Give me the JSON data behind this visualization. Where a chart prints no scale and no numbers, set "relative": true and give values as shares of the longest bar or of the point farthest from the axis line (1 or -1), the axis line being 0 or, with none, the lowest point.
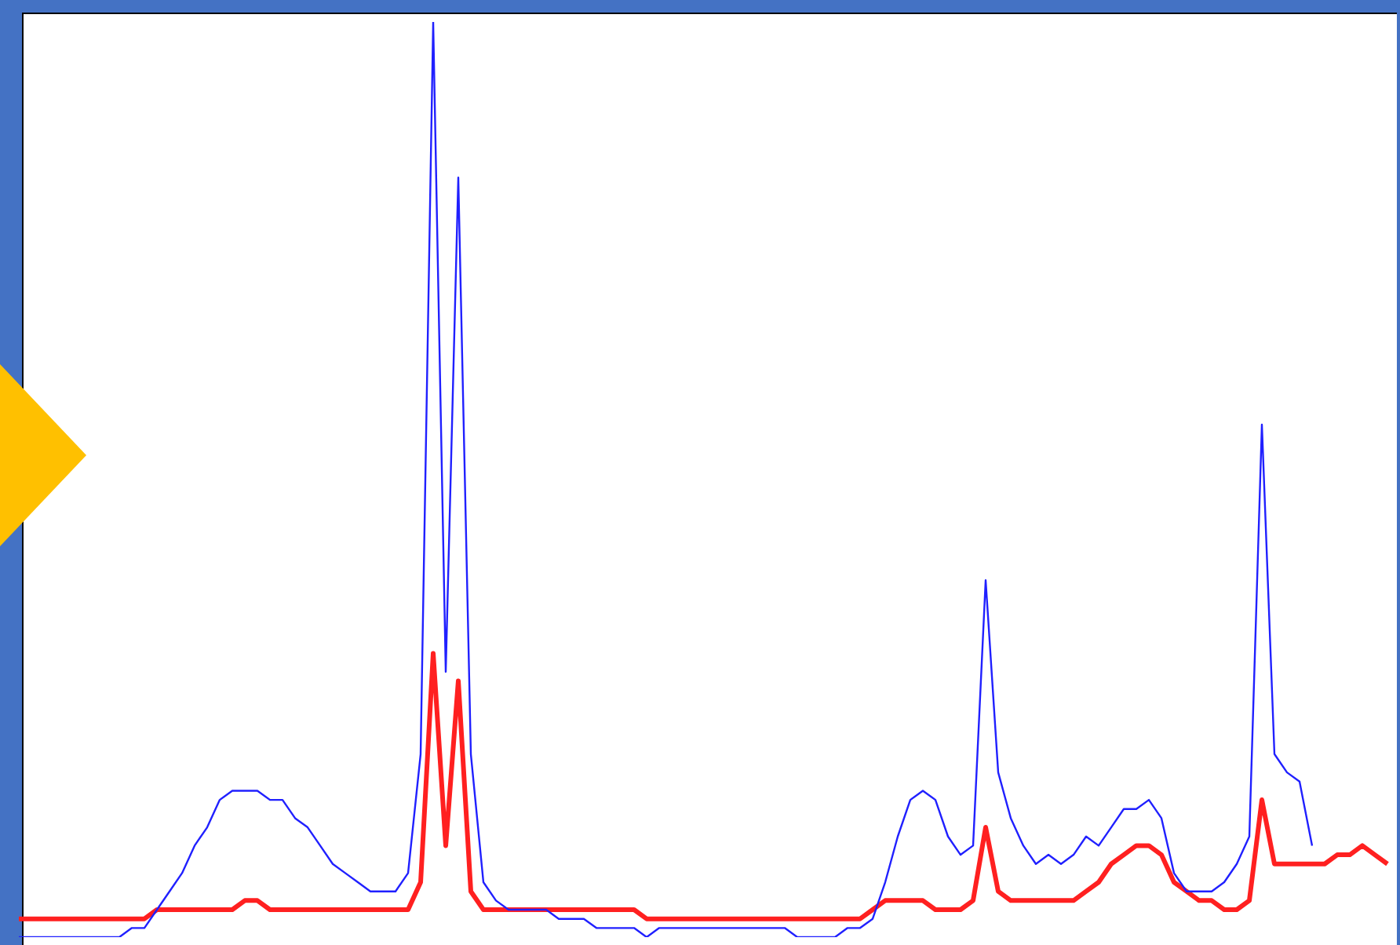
{
  "chart_data": {
    "type": "line",
    "relative": true,
    "marker": "none",
    "categories": [
      null,
      null,
      null,
      null,
      null,
      null,
      null,
      null,
      null,
      null,
      null,
      null,
      null,
      null,
      null,
      null,
      null,
      null,
      null,
      null,
      null,
      null,
      null,
      null,
      null,
      null,
      null,
      null,
      null,
      null,
      null,
      null,
      null,
      null,
      null,
      null,
      null,
      null,
      null,
      null,
      null,
      null,
      null,
      null,
      null,
      null,
      null,
      null,
      null,
      null,
      null,
      null,
      null,
      null,
      null,
      null,
      null,
      null,
      null,
      null,
      null,
      null,
      null,
      null,
      null,
      null,
      null,
      null,
      null,
      null,
      null,
      null,
      null,
      null,
      null,
      null,
      null,
      null,
      null,
      null,
      null,
      null,
      null,
      null,
      null,
      null,
      null,
      null,
      null,
      null,
      null,
      null,
      null,
      null,
      null,
      null,
      null,
      null,
      null,
      null,
      null,
      null,
      null,
      null,
      null,
      null,
      null,
      null,
      null,
      null
    ],
    "series": [
      {
        "color": "#2020ff",
        "values": [
          0,
          0,
          0,
          0,
          0,
          0,
          0,
          0,
          0,
          0.01,
          0.01,
          0.03,
          0.05,
          0.07,
          0.1,
          0.12,
          0.15,
          0.16,
          0.16,
          0.16,
          0.15,
          0.15,
          0.13,
          0.12,
          0.1,
          0.08,
          0.07,
          0.06,
          0.05,
          0.05,
          0.05,
          0.07,
          0.2,
          1,
          0.29,
          0.83,
          0.2,
          0.06,
          0.04,
          0.03,
          0.03,
          0.03,
          0.03,
          0.02,
          0.02,
          0.02,
          0.01,
          0.01,
          0.01,
          0.01,
          0,
          0.01,
          0.01,
          0.01,
          0.01,
          0.01,
          0.01,
          0.01,
          0.01,
          0.01,
          0.01,
          0.01,
          0,
          0,
          0,
          0,
          0.01,
          0.01,
          0.02,
          0.06,
          0.11,
          0.15,
          0.16,
          0.15,
          0.11,
          0.09,
          0.1,
          0.39,
          0.18,
          0.13,
          0.1,
          0.08,
          0.09,
          0.08,
          0.09,
          0.11,
          0.1,
          0.12,
          0.14,
          0.14,
          0.15,
          0.13,
          0.07,
          0.05,
          0.05,
          0.05,
          0.06,
          0.08,
          0.11,
          0.56,
          0.2,
          0.18,
          0.17,
          0.1,
          null,
          null,
          null,
          null,
          null,
          null
        ]
      },
      {
        "color": "#ff2020",
        "values": [
          0.02,
          0.02,
          0.02,
          0.02,
          0.02,
          0.02,
          0.02,
          0.02,
          0.02,
          0.02,
          0.02,
          0.03,
          0.03,
          0.03,
          0.03,
          0.03,
          0.03,
          0.03,
          0.04,
          0.04,
          0.03,
          0.03,
          0.03,
          0.03,
          0.03,
          0.03,
          0.03,
          0.03,
          0.03,
          0.03,
          0.03,
          0.03,
          0.06,
          0.31,
          0.1,
          0.28,
          0.05,
          0.03,
          0.03,
          0.03,
          0.03,
          0.03,
          0.03,
          0.03,
          0.03,
          0.03,
          0.03,
          0.03,
          0.03,
          0.03,
          0.02,
          0.02,
          0.02,
          0.02,
          0.02,
          0.02,
          0.02,
          0.02,
          0.02,
          0.02,
          0.02,
          0.02,
          0.02,
          0.02,
          0.02,
          0.02,
          0.02,
          0.02,
          0.03,
          0.04,
          0.04,
          0.04,
          0.04,
          0.03,
          0.03,
          0.03,
          0.04,
          0.12,
          0.05,
          0.04,
          0.04,
          0.04,
          0.04,
          0.04,
          0.04,
          0.05,
          0.06,
          0.08,
          0.09,
          0.1,
          0.1,
          0.09,
          0.06,
          0.05,
          0.04,
          0.04,
          0.03,
          0.03,
          0.04,
          0.15,
          0.08,
          0.08,
          0.08,
          0.08,
          0.08,
          0.09,
          0.09,
          0.1,
          0.09,
          0.08
        ]
      }
    ]
  }
}
